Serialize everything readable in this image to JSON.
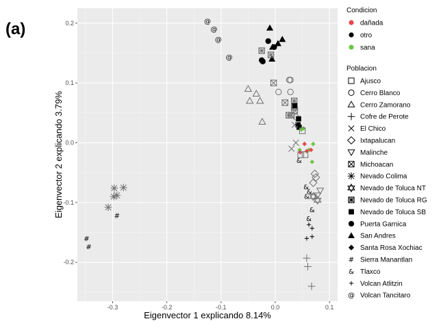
{
  "panel_label": "(a)",
  "chart_data": {
    "type": "scatter",
    "xlabel": "Eigenvector 1 explicando 8.14%",
    "ylabel": "Eigenvector 2 explicando 3.79%",
    "xlim": [
      -0.365,
      0.115
    ],
    "ylim": [
      -0.265,
      0.225
    ],
    "xticks": [
      -0.3,
      -0.2,
      -0.1,
      0.0,
      0.1
    ],
    "xtick_labels": [
      "-0.3",
      "-0.2",
      "-0.1",
      "0.0",
      "0.1"
    ],
    "yticks": [
      -0.2,
      -0.1,
      0.0,
      0.1,
      0.2
    ],
    "ytick_labels": [
      "-0.2",
      "-0.1",
      "0.0",
      "0.1",
      "0.2"
    ],
    "grid": true,
    "legend_placement": "right",
    "colors": {
      "panel_bg": "#ebebeb",
      "grid_major": "#ffffff",
      "grid_minor": "#f5f5f5",
      "danada": "#e8474c",
      "otro": "#000000",
      "sana": "#6cc644",
      "outline": "#6e6e6e"
    },
    "condition_legend": {
      "title": "Condicion",
      "items": [
        {
          "label": "dañada",
          "color": "#e8474c"
        },
        {
          "label": "otro",
          "color": "#000000"
        },
        {
          "label": "sana",
          "color": "#6cc644"
        }
      ]
    },
    "population_legend": {
      "title": "Poblacion",
      "items": [
        {
          "label": "Ajusco",
          "shape": "square-open"
        },
        {
          "label": "Cerro Blanco",
          "shape": "circle-open"
        },
        {
          "label": "Cerro Zamorano",
          "shape": "triangle-open"
        },
        {
          "label": "Cofre de Perote",
          "shape": "plus"
        },
        {
          "label": "El Chico",
          "shape": "cross"
        },
        {
          "label": "Ixtapalucan",
          "shape": "diamond-open"
        },
        {
          "label": "Malinche",
          "shape": "triangle-down-open"
        },
        {
          "label": "Michoacan",
          "shape": "square-cross"
        },
        {
          "label": "Nevado Colima",
          "shape": "asterisk"
        },
        {
          "label": "Nevado de Toluca NT",
          "shape": "star-of-david"
        },
        {
          "label": "Nevado de Toluca RG",
          "shape": "square-grid"
        },
        {
          "label": "Nevado de Toluca SB",
          "shape": "square-filled"
        },
        {
          "label": "Puerta Garnica",
          "shape": "circle-filled"
        },
        {
          "label": "San Andres",
          "shape": "triangle-filled"
        },
        {
          "label": "Santa Rosa Xochiac",
          "shape": "diamond-filled"
        },
        {
          "label": "Sierra Manantlan",
          "shape": "hash"
        },
        {
          "label": "Tlaxco",
          "shape": "ampersand"
        },
        {
          "label": "Volcan Atlitzin",
          "shape": "small-plus"
        },
        {
          "label": "Volcan Tancitaro",
          "shape": "at"
        }
      ]
    },
    "points": [
      {
        "x": -0.125,
        "y": 0.203,
        "shape": "at",
        "cond": "otro"
      },
      {
        "x": -0.113,
        "y": 0.19,
        "shape": "at",
        "cond": "otro"
      },
      {
        "x": -0.105,
        "y": 0.173,
        "shape": "at",
        "cond": "otro"
      },
      {
        "x": -0.085,
        "y": 0.143,
        "shape": "at",
        "cond": "otro"
      },
      {
        "x": -0.01,
        "y": 0.192,
        "shape": "triangle-filled",
        "cond": "otro"
      },
      {
        "x": 0.013,
        "y": 0.173,
        "shape": "triangle-filled",
        "cond": "otro"
      },
      {
        "x": 0.005,
        "y": 0.166,
        "shape": "triangle-filled",
        "cond": "otro"
      },
      {
        "x": -0.005,
        "y": 0.16,
        "shape": "triangle-filled",
        "cond": "otro"
      },
      {
        "x": -0.006,
        "y": 0.14,
        "shape": "triangle-filled",
        "cond": "otro"
      },
      {
        "x": -0.013,
        "y": 0.17,
        "shape": "circle-filled",
        "cond": "otro"
      },
      {
        "x": -0.025,
        "y": 0.138,
        "shape": "circle-filled",
        "cond": "otro"
      },
      {
        "x": -0.023,
        "y": 0.136,
        "shape": "circle-filled",
        "cond": "otro"
      },
      {
        "x": -0.002,
        "y": 0.16,
        "shape": "circle-filled",
        "cond": "otro"
      },
      {
        "x": -0.025,
        "y": 0.154,
        "shape": "square-grid",
        "cond": "otro"
      },
      {
        "x": -0.008,
        "y": 0.147,
        "shape": "square-grid",
        "cond": "otro"
      },
      {
        "x": -0.003,
        "y": 0.1,
        "shape": "square-cross",
        "cond": "otro"
      },
      {
        "x": 0.018,
        "y": 0.067,
        "shape": "square-cross",
        "cond": "otro"
      },
      {
        "x": 0.035,
        "y": 0.07,
        "shape": "square-grid",
        "cond": "otro"
      },
      {
        "x": 0.035,
        "y": 0.059,
        "shape": "square-grid",
        "cond": "otro"
      },
      {
        "x": 0.025,
        "y": 0.046,
        "shape": "square-grid",
        "cond": "otro"
      },
      {
        "x": 0.03,
        "y": 0.046,
        "shape": "square-cross",
        "cond": "otro"
      },
      {
        "x": 0.036,
        "y": 0.054,
        "shape": "square-cross",
        "cond": "otro"
      },
      {
        "x": 0.026,
        "y": 0.105,
        "shape": "circle-open",
        "cond": "otro"
      },
      {
        "x": 0.028,
        "y": 0.105,
        "shape": "circle-open",
        "cond": "otro"
      },
      {
        "x": 0.006,
        "y": 0.085,
        "shape": "circle-open",
        "cond": "otro"
      },
      {
        "x": 0.028,
        "y": 0.085,
        "shape": "circle-open",
        "cond": "otro"
      },
      {
        "x": 0.038,
        "y": 0.043,
        "shape": "circle-open",
        "cond": "otro"
      },
      {
        "x": -0.05,
        "y": 0.09,
        "shape": "triangle-open",
        "cond": "otro"
      },
      {
        "x": -0.035,
        "y": 0.082,
        "shape": "triangle-open",
        "cond": "otro"
      },
      {
        "x": -0.047,
        "y": 0.07,
        "shape": "triangle-open",
        "cond": "otro"
      },
      {
        "x": -0.028,
        "y": 0.07,
        "shape": "triangle-open",
        "cond": "otro"
      },
      {
        "x": -0.024,
        "y": 0.035,
        "shape": "triangle-open",
        "cond": "otro"
      },
      {
        "x": 0.036,
        "y": 0.062,
        "shape": "square-filled",
        "cond": "otro"
      },
      {
        "x": 0.043,
        "y": 0.04,
        "shape": "square-filled",
        "cond": "otro"
      },
      {
        "x": 0.042,
        "y": 0.03,
        "shape": "square-filled",
        "cond": "otro"
      },
      {
        "x": 0.044,
        "y": 0.026,
        "shape": "square-filled",
        "cond": "otro"
      },
      {
        "x": 0.036,
        "y": 0.03,
        "shape": "cross",
        "cond": "otro"
      },
      {
        "x": 0.03,
        "y": -0.01,
        "shape": "cross",
        "cond": "otro"
      },
      {
        "x": 0.038,
        "y": 0.0,
        "shape": "cross",
        "cond": "otro"
      },
      {
        "x": 0.048,
        "y": 0.022,
        "shape": "diamond-filled",
        "cond": "sana"
      },
      {
        "x": 0.052,
        "y": 0.024,
        "shape": "diamond-filled",
        "cond": "sana"
      },
      {
        "x": 0.045,
        "y": -0.012,
        "shape": "diamond-filled",
        "cond": "sana"
      },
      {
        "x": 0.062,
        "y": -0.012,
        "shape": "diamond-filled",
        "cond": "sana"
      },
      {
        "x": 0.07,
        "y": -0.002,
        "shape": "diamond-filled",
        "cond": "sana"
      },
      {
        "x": 0.068,
        "y": -0.032,
        "shape": "diamond-filled",
        "cond": "sana"
      },
      {
        "x": 0.054,
        "y": -0.002,
        "shape": "diamond-filled",
        "cond": "danada"
      },
      {
        "x": 0.058,
        "y": -0.014,
        "shape": "diamond-filled",
        "cond": "danada"
      },
      {
        "x": 0.066,
        "y": -0.012,
        "shape": "diamond-filled",
        "cond": "danada"
      },
      {
        "x": 0.046,
        "y": -0.016,
        "shape": "diamond-filled",
        "cond": "danada"
      },
      {
        "x": 0.047,
        "y": -0.02,
        "shape": "square-open",
        "cond": "otro"
      },
      {
        "x": 0.055,
        "y": -0.02,
        "shape": "square-open",
        "cond": "otro"
      },
      {
        "x": 0.05,
        "y": 0.02,
        "shape": "square-open",
        "cond": "otro"
      },
      {
        "x": 0.073,
        "y": -0.052,
        "shape": "diamond-open",
        "cond": "otro"
      },
      {
        "x": 0.075,
        "y": -0.058,
        "shape": "diamond-open",
        "cond": "otro"
      },
      {
        "x": 0.07,
        "y": -0.067,
        "shape": "diamond-open",
        "cond": "otro"
      },
      {
        "x": 0.083,
        "y": -0.08,
        "shape": "triangle-down-open",
        "cond": "otro"
      },
      {
        "x": 0.078,
        "y": -0.088,
        "shape": "triangle-down-open",
        "cond": "otro"
      },
      {
        "x": 0.07,
        "y": -0.09,
        "shape": "star-of-david",
        "cond": "otro"
      },
      {
        "x": 0.078,
        "y": -0.096,
        "shape": "star-of-david",
        "cond": "otro"
      },
      {
        "x": 0.044,
        "y": -0.03,
        "shape": "ampersand",
        "cond": "otro"
      },
      {
        "x": 0.057,
        "y": -0.074,
        "shape": "ampersand",
        "cond": "otro"
      },
      {
        "x": 0.063,
        "y": -0.082,
        "shape": "ampersand",
        "cond": "otro"
      },
      {
        "x": 0.058,
        "y": -0.09,
        "shape": "ampersand",
        "cond": "otro"
      },
      {
        "x": 0.068,
        "y": -0.112,
        "shape": "ampersand",
        "cond": "otro"
      },
      {
        "x": 0.062,
        "y": -0.127,
        "shape": "ampersand",
        "cond": "otro"
      },
      {
        "x": 0.062,
        "y": -0.137,
        "shape": "small-plus",
        "cond": "otro"
      },
      {
        "x": 0.068,
        "y": -0.143,
        "shape": "small-plus",
        "cond": "otro"
      },
      {
        "x": 0.068,
        "y": -0.157,
        "shape": "small-plus",
        "cond": "otro"
      },
      {
        "x": 0.058,
        "y": -0.16,
        "shape": "small-plus",
        "cond": "otro"
      },
      {
        "x": 0.058,
        "y": -0.193,
        "shape": "plus",
        "cond": "otro"
      },
      {
        "x": 0.06,
        "y": -0.207,
        "shape": "plus",
        "cond": "otro"
      },
      {
        "x": 0.067,
        "y": -0.24,
        "shape": "plus",
        "cond": "otro"
      },
      {
        "x": -0.297,
        "y": -0.076,
        "shape": "asterisk",
        "cond": "otro"
      },
      {
        "x": -0.28,
        "y": -0.075,
        "shape": "asterisk",
        "cond": "otro"
      },
      {
        "x": -0.292,
        "y": -0.088,
        "shape": "asterisk",
        "cond": "otro"
      },
      {
        "x": -0.298,
        "y": -0.09,
        "shape": "asterisk",
        "cond": "otro"
      },
      {
        "x": -0.308,
        "y": -0.108,
        "shape": "asterisk",
        "cond": "otro"
      },
      {
        "x": -0.292,
        "y": -0.122,
        "shape": "hash",
        "cond": "otro"
      },
      {
        "x": -0.348,
        "y": -0.16,
        "shape": "hash",
        "cond": "otro"
      },
      {
        "x": -0.344,
        "y": -0.174,
        "shape": "hash",
        "cond": "otro"
      }
    ]
  }
}
